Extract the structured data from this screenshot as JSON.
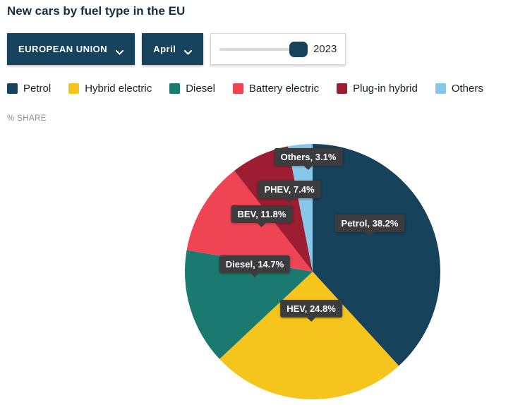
{
  "title": "New cars by fuel type in the EU",
  "controls": {
    "region_selector": {
      "label": "EUROPEAN UNION"
    },
    "month_selector": {
      "label": "April"
    },
    "year_slider": {
      "value": "2023"
    }
  },
  "share_label": "% SHARE",
  "colors": {
    "accent_navy": "#16425B",
    "tooltip_bg": "#3C3C3E"
  },
  "chart_data": {
    "type": "pie",
    "title": "New cars by fuel type in the EU",
    "unit": "% share",
    "direction": "clockwise",
    "start_angle_deg": 0,
    "slices": [
      {
        "name": "Petrol",
        "abbr": "Petrol",
        "value": 38.2,
        "color": "#16425B",
        "callout": "Petrol, 38.2%"
      },
      {
        "name": "Hybrid electric",
        "abbr": "HEV",
        "value": 24.8,
        "color": "#F5C51D",
        "callout": "HEV, 24.8%"
      },
      {
        "name": "Diesel",
        "abbr": "Diesel",
        "value": 14.7,
        "color": "#1A7A6F",
        "callout": "Diesel, 14.7%"
      },
      {
        "name": "Battery electric",
        "abbr": "BEV",
        "value": 11.8,
        "color": "#EE4454",
        "callout": "BEV, 11.8%"
      },
      {
        "name": "Plug-in hybrid",
        "abbr": "PHEV",
        "value": 7.4,
        "color": "#9D1D33",
        "callout": "PHEV, 7.4%"
      },
      {
        "name": "Others",
        "abbr": "Others",
        "value": 3.1,
        "color": "#87C7EA",
        "callout": "Others, 3.1%"
      }
    ]
  }
}
